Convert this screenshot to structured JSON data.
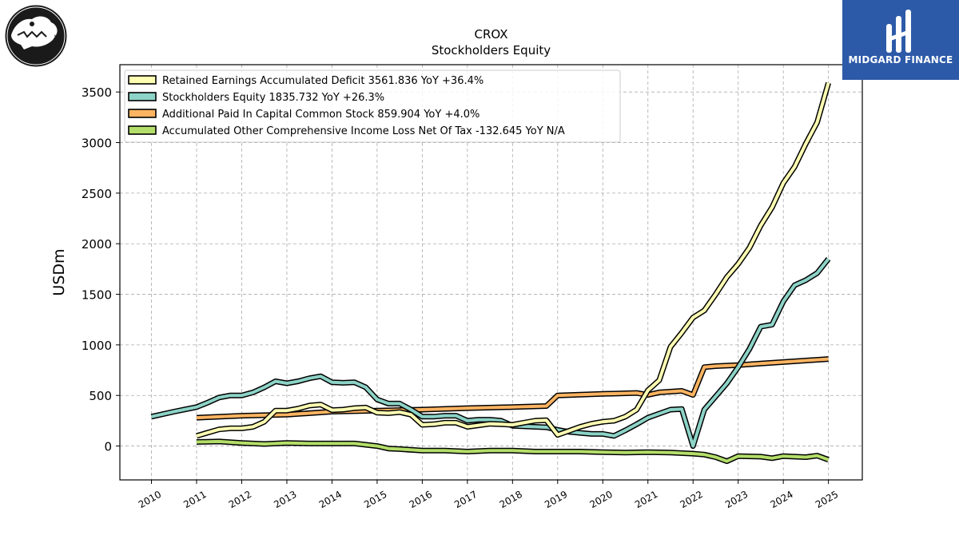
{
  "logo": {
    "icon": "crocodile-logo-icon"
  },
  "brand": {
    "name": "MIDGARD FINANCE",
    "icon": "midgard-logo-icon",
    "color": "#2d5aa8"
  },
  "chart_data": {
    "type": "line",
    "title": "CROX",
    "subtitle": "Stockholders  Equity",
    "xlabel": "",
    "ylabel": "USDm",
    "xlim": [
      2009.3,
      2025.75
    ],
    "ylim": [
      -335,
      3770
    ],
    "x_ticks": [
      "2010",
      "2011",
      "2012",
      "2013",
      "2014",
      "2015",
      "2016",
      "2017",
      "2018",
      "2019",
      "2020",
      "2021",
      "2022",
      "2023",
      "2024",
      "2025"
    ],
    "y_ticks": [
      0,
      500,
      1000,
      1500,
      2000,
      2500,
      3000,
      3500
    ],
    "grid": true,
    "legend_position": "top-left",
    "series": [
      {
        "name": "Retained Earnings Accumulated Deficit  3561.836 YoY +36.4%",
        "color": "#ffffb3",
        "points": [
          [
            2011.0,
            100
          ],
          [
            2011.5,
            165
          ],
          [
            2011.75,
            175
          ],
          [
            2012.0,
            175
          ],
          [
            2012.25,
            190
          ],
          [
            2012.5,
            240
          ],
          [
            2012.75,
            350
          ],
          [
            2013.0,
            350
          ],
          [
            2013.25,
            370
          ],
          [
            2013.5,
            400
          ],
          [
            2013.75,
            410
          ],
          [
            2014.0,
            355
          ],
          [
            2014.25,
            360
          ],
          [
            2014.5,
            375
          ],
          [
            2014.75,
            380
          ],
          [
            2015.0,
            330
          ],
          [
            2015.25,
            325
          ],
          [
            2015.5,
            335
          ],
          [
            2015.75,
            310
          ],
          [
            2016.0,
            210
          ],
          [
            2016.25,
            215
          ],
          [
            2016.5,
            230
          ],
          [
            2016.75,
            230
          ],
          [
            2017.0,
            190
          ],
          [
            2017.25,
            205
          ],
          [
            2017.5,
            220
          ],
          [
            2017.75,
            215
          ],
          [
            2018.0,
            210
          ],
          [
            2018.25,
            230
          ],
          [
            2018.5,
            250
          ],
          [
            2018.75,
            255
          ],
          [
            2019.0,
            110
          ],
          [
            2019.25,
            150
          ],
          [
            2019.5,
            190
          ],
          [
            2019.75,
            220
          ],
          [
            2020.0,
            240
          ],
          [
            2020.25,
            250
          ],
          [
            2020.5,
            290
          ],
          [
            2020.75,
            360
          ],
          [
            2021.0,
            550
          ],
          [
            2021.25,
            650
          ],
          [
            2021.5,
            980
          ],
          [
            2021.75,
            1120
          ],
          [
            2022.0,
            1270
          ],
          [
            2022.25,
            1340
          ],
          [
            2022.5,
            1500
          ],
          [
            2022.75,
            1670
          ],
          [
            2023.0,
            1800
          ],
          [
            2023.25,
            1960
          ],
          [
            2023.5,
            2180
          ],
          [
            2023.75,
            2360
          ],
          [
            2024.0,
            2600
          ],
          [
            2024.25,
            2760
          ],
          [
            2024.5,
            2990
          ],
          [
            2024.75,
            3200
          ],
          [
            2025.0,
            3590
          ]
        ]
      },
      {
        "name": "Stockholders Equity  1835.732 YoY +26.3%",
        "color": "#8dd3c7",
        "points": [
          [
            2010.0,
            290
          ],
          [
            2010.5,
            340
          ],
          [
            2011.0,
            385
          ],
          [
            2011.25,
            430
          ],
          [
            2011.5,
            480
          ],
          [
            2011.75,
            500
          ],
          [
            2012.0,
            500
          ],
          [
            2012.25,
            530
          ],
          [
            2012.5,
            580
          ],
          [
            2012.75,
            640
          ],
          [
            2013.0,
            620
          ],
          [
            2013.25,
            640
          ],
          [
            2013.5,
            670
          ],
          [
            2013.75,
            690
          ],
          [
            2014.0,
            630
          ],
          [
            2014.25,
            625
          ],
          [
            2014.5,
            630
          ],
          [
            2014.75,
            580
          ],
          [
            2015.0,
            460
          ],
          [
            2015.25,
            420
          ],
          [
            2015.5,
            420
          ],
          [
            2015.75,
            360
          ],
          [
            2016.0,
            290
          ],
          [
            2016.25,
            290
          ],
          [
            2016.5,
            300
          ],
          [
            2016.75,
            300
          ],
          [
            2017.0,
            250
          ],
          [
            2017.25,
            260
          ],
          [
            2017.5,
            260
          ],
          [
            2017.75,
            250
          ],
          [
            2018.0,
            200
          ],
          [
            2018.25,
            195
          ],
          [
            2018.5,
            190
          ],
          [
            2018.75,
            185
          ],
          [
            2019.0,
            160
          ],
          [
            2019.25,
            140
          ],
          [
            2019.5,
            130
          ],
          [
            2019.75,
            120
          ],
          [
            2020.0,
            120
          ],
          [
            2020.25,
            100
          ],
          [
            2020.5,
            155
          ],
          [
            2020.75,
            215
          ],
          [
            2021.0,
            280
          ],
          [
            2021.25,
            320
          ],
          [
            2021.5,
            360
          ],
          [
            2021.75,
            365
          ],
          [
            2022.0,
            0
          ],
          [
            2022.25,
            360
          ],
          [
            2022.5,
            490
          ],
          [
            2022.75,
            620
          ],
          [
            2023.0,
            780
          ],
          [
            2023.25,
            960
          ],
          [
            2023.5,
            1180
          ],
          [
            2023.75,
            1200
          ],
          [
            2024.0,
            1430
          ],
          [
            2024.25,
            1590
          ],
          [
            2024.5,
            1640
          ],
          [
            2024.75,
            1710
          ],
          [
            2025.0,
            1850
          ]
        ]
      },
      {
        "name": "Additional Paid In Capital Common Stock  859.904 YoY +4.0%",
        "color": "#fdb462",
        "points": [
          [
            2011.0,
            280
          ],
          [
            2012.0,
            300
          ],
          [
            2013.0,
            310
          ],
          [
            2014.0,
            340
          ],
          [
            2015.0,
            350
          ],
          [
            2016.0,
            360
          ],
          [
            2017.0,
            375
          ],
          [
            2018.0,
            385
          ],
          [
            2018.75,
            395
          ],
          [
            2019.0,
            500
          ],
          [
            2020.0,
            515
          ],
          [
            2020.75,
            525
          ],
          [
            2021.0,
            505
          ],
          [
            2021.25,
            530
          ],
          [
            2021.75,
            545
          ],
          [
            2022.0,
            505
          ],
          [
            2022.25,
            780
          ],
          [
            2022.5,
            790
          ],
          [
            2023.0,
            800
          ],
          [
            2023.5,
            815
          ],
          [
            2024.0,
            830
          ],
          [
            2024.5,
            845
          ],
          [
            2025.0,
            860
          ]
        ]
      },
      {
        "name": "Accumulated Other Comprehensive Income Loss Net Of Tax  -132.645 YoY N/A",
        "color": "#b3de69",
        "points": [
          [
            2011.0,
            40
          ],
          [
            2011.5,
            45
          ],
          [
            2012.0,
            30
          ],
          [
            2012.25,
            25
          ],
          [
            2012.5,
            20
          ],
          [
            2013.0,
            30
          ],
          [
            2013.5,
            25
          ],
          [
            2014.0,
            25
          ],
          [
            2014.5,
            25
          ],
          [
            2015.0,
            0
          ],
          [
            2015.25,
            -25
          ],
          [
            2015.5,
            -30
          ],
          [
            2016.0,
            -45
          ],
          [
            2016.5,
            -45
          ],
          [
            2017.0,
            -55
          ],
          [
            2017.5,
            -45
          ],
          [
            2018.0,
            -45
          ],
          [
            2018.5,
            -55
          ],
          [
            2019.0,
            -55
          ],
          [
            2019.5,
            -55
          ],
          [
            2020.0,
            -60
          ],
          [
            2020.5,
            -65
          ],
          [
            2021.0,
            -60
          ],
          [
            2021.5,
            -65
          ],
          [
            2022.0,
            -75
          ],
          [
            2022.25,
            -85
          ],
          [
            2022.5,
            -110
          ],
          [
            2022.75,
            -150
          ],
          [
            2023.0,
            -100
          ],
          [
            2023.5,
            -105
          ],
          [
            2023.75,
            -120
          ],
          [
            2024.0,
            -100
          ],
          [
            2024.5,
            -110
          ],
          [
            2024.75,
            -95
          ],
          [
            2025.0,
            -135
          ]
        ]
      }
    ]
  }
}
